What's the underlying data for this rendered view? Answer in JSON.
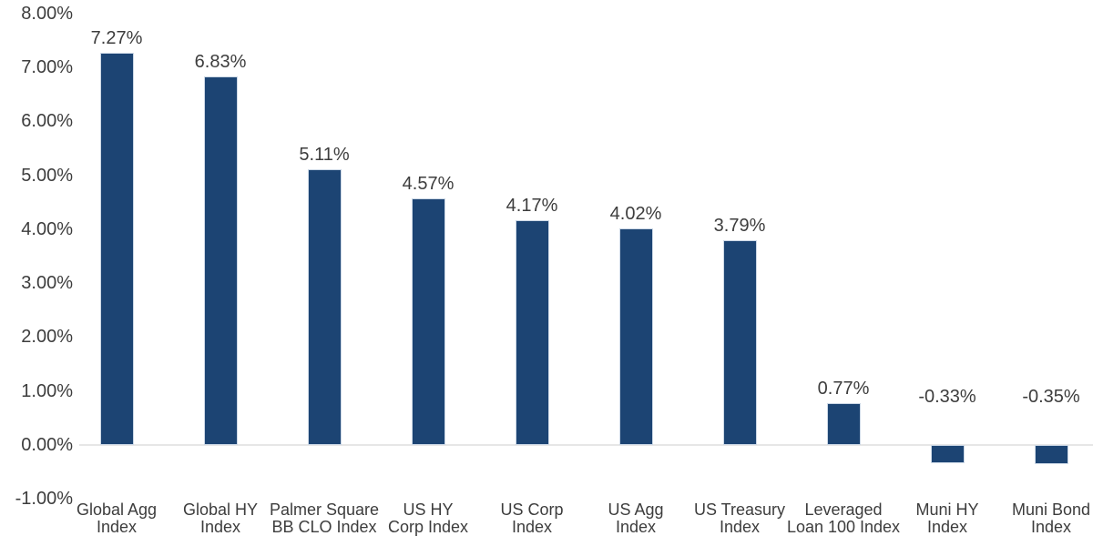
{
  "chart_data": {
    "type": "bar",
    "title": "",
    "xlabel": "",
    "ylabel": "",
    "legend": "none",
    "grid": "zero-line-only",
    "categories": [
      "Global Agg Index",
      "Global HY Index",
      "Palmer Square BB CLO Index",
      "US HY Corp Index",
      "US Corp Index",
      "US Agg Index",
      "US Treasury Index",
      "Leveraged Loan 100 Index",
      "Muni HY Index",
      "Muni Bond Index"
    ],
    "category_lines": [
      [
        "Global Agg",
        "Index"
      ],
      [
        "Global HY",
        "Index"
      ],
      [
        "Palmer Square",
        "BB CLO Index"
      ],
      [
        "US HY",
        "Corp Index"
      ],
      [
        "US Corp",
        "Index"
      ],
      [
        "US Agg",
        "Index"
      ],
      [
        "US Treasury",
        "Index"
      ],
      [
        "Leveraged",
        "Loan 100 Index"
      ],
      [
        "Muni HY",
        "Index"
      ],
      [
        "Muni Bond",
        "Index"
      ]
    ],
    "values": [
      7.27,
      6.83,
      5.11,
      4.57,
      4.17,
      4.02,
      3.79,
      0.77,
      -0.33,
      -0.35
    ],
    "value_labels": [
      "7.27%",
      "6.83%",
      "5.11%",
      "4.57%",
      "4.17%",
      "4.02%",
      "3.79%",
      "0.77%",
      "-0.33%",
      "-0.35%"
    ],
    "y_axis": {
      "min": -1,
      "max": 8,
      "tick_step": 1,
      "tick_values": [
        8,
        7,
        6,
        5,
        4,
        3,
        2,
        1,
        0,
        -1
      ],
      "tick_labels": [
        "8.00%",
        "7.00%",
        "6.00%",
        "5.00%",
        "4.00%",
        "3.00%",
        "2.00%",
        "1.00%",
        "0.00%",
        "-1.00%"
      ]
    },
    "colors": {
      "bar": "#1c4473",
      "bar_border": "#ccd8e6",
      "axis_line": "#e6e6e6",
      "text": "#3d3d3d",
      "background": "#ffffff"
    }
  }
}
